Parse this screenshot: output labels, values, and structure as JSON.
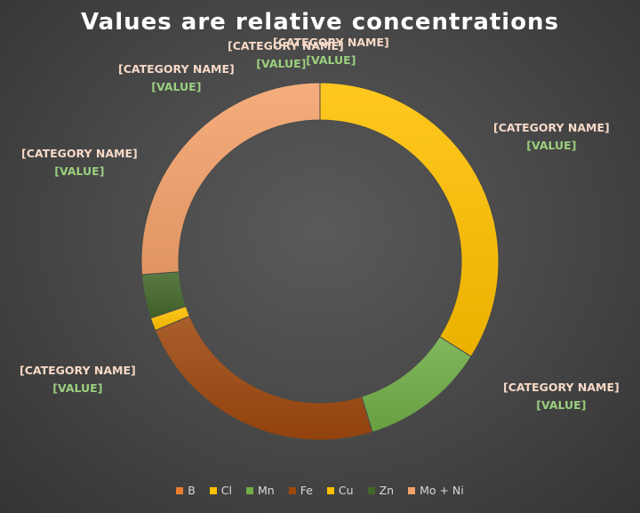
{
  "chart_data": {
    "type": "doughnut",
    "title": "Values are relative concentrations",
    "categories": [
      "B",
      "Cl",
      "Mn",
      "Fe",
      "Cu",
      "Zn",
      "Mo + Ni"
    ],
    "series": [
      {
        "values": [
          0,
          0.3333,
          0.1111,
          0.2301,
          0.0115,
          0.0389,
          0.2571
        ],
        "colors": [
          "#ed7d31",
          "#ffc000",
          "#70ad47",
          "#9e480e",
          "#ffc000",
          "#43682b",
          "#f4a26b"
        ]
      }
    ],
    "slice_labels": {
      "category": "[CATEGORY NAME]",
      "value": "[VALUE]"
    },
    "legend": {
      "position": "bottom"
    }
  }
}
